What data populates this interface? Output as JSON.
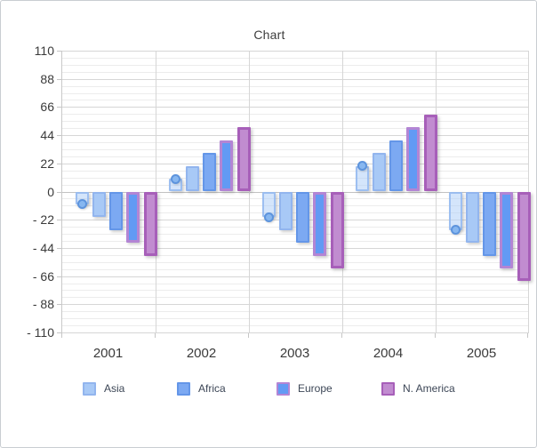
{
  "panel": {
    "title": "Chart"
  },
  "chart_data": {
    "type": "bar",
    "title": "Chart",
    "categories": [
      "2001",
      "2002",
      "2003",
      "2004",
      "2005"
    ],
    "series": [
      {
        "name": "",
        "in_legend": false,
        "marker": "circle",
        "values": [
          -10,
          10,
          -20,
          20,
          -30
        ],
        "fill": "rgba(176,207,248,0.55)",
        "border": "rgba(148,185,240,0.85)",
        "border_width": 2,
        "marker_fill": "#87b7f0",
        "marker_border": "#5d94dd"
      },
      {
        "name": "Asia",
        "in_legend": true,
        "values": [
          -20,
          20,
          -30,
          30,
          -40
        ],
        "fill": "#a8c9f6",
        "border": "#92b5ee",
        "border_width": 2
      },
      {
        "name": "Africa",
        "in_legend": true,
        "values": [
          -30,
          30,
          -40,
          40,
          -50
        ],
        "fill": "#7ca9f2",
        "border": "#6496e8",
        "border_width": 2
      },
      {
        "name": "Europe",
        "in_legend": true,
        "values": [
          -40,
          40,
          -50,
          50,
          -60
        ],
        "fill": "#629af4",
        "border": "#b385d4",
        "border_width": 3
      },
      {
        "name": "N. America",
        "in_legend": true,
        "values": [
          -50,
          50,
          -60,
          60,
          -70
        ],
        "fill": "#c18cd0",
        "border": "#a75fb9",
        "border_width": 3
      }
    ],
    "ylim": [
      -110,
      110
    ],
    "ytick_values": [
      110,
      88,
      66,
      44,
      22,
      0,
      -22,
      -44,
      -66,
      -88,
      -110
    ],
    "ytick_labels": [
      "110",
      "88",
      "66",
      "44",
      "22",
      "0",
      "- 22",
      "- 44",
      "- 66",
      "- 88",
      "- 110"
    ],
    "minor_subdivisions": 4,
    "grid": true,
    "legend_position": "bottom"
  }
}
